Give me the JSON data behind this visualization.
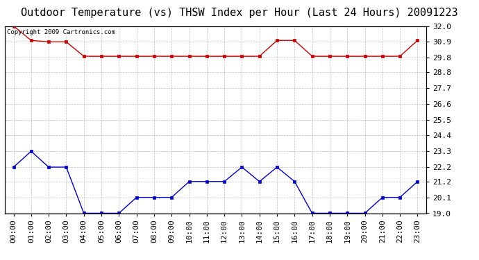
{
  "title": "Outdoor Temperature (vs) THSW Index per Hour (Last 24 Hours) 20091223",
  "copyright": "Copyright 2009 Cartronics.com",
  "x_labels": [
    "00:00",
    "01:00",
    "02:00",
    "03:00",
    "04:00",
    "05:00",
    "06:00",
    "07:00",
    "08:00",
    "09:00",
    "10:00",
    "11:00",
    "12:00",
    "13:00",
    "14:00",
    "15:00",
    "16:00",
    "17:00",
    "18:00",
    "19:00",
    "20:00",
    "21:00",
    "22:00",
    "23:00"
  ],
  "red_data": [
    32.0,
    31.0,
    30.9,
    30.9,
    29.9,
    29.9,
    29.9,
    29.9,
    29.9,
    29.9,
    29.9,
    29.9,
    29.9,
    29.9,
    29.9,
    31.0,
    31.0,
    29.9,
    29.9,
    29.9,
    29.9,
    29.9,
    29.9,
    31.0
  ],
  "blue_data": [
    22.2,
    23.3,
    22.2,
    22.2,
    19.0,
    19.0,
    19.0,
    20.1,
    20.1,
    20.1,
    21.2,
    21.2,
    21.2,
    22.2,
    21.2,
    22.2,
    21.2,
    19.0,
    19.0,
    19.0,
    19.0,
    20.1,
    20.1,
    21.2
  ],
  "red_color": "#cc0000",
  "blue_color": "#0000cc",
  "bg_color": "#ffffff",
  "grid_color": "#b0b0b0",
  "ylim": [
    19.0,
    32.0
  ],
  "yticks": [
    19.0,
    20.1,
    21.2,
    22.2,
    23.3,
    24.4,
    25.5,
    26.6,
    27.7,
    28.8,
    29.8,
    30.9,
    32.0
  ],
  "ytick_labels": [
    "19.0",
    "20.1",
    "21.2",
    "22.2",
    "23.3",
    "24.4",
    "25.5",
    "26.6",
    "27.7",
    "28.8",
    "29.8",
    "30.9",
    "32.0"
  ],
  "title_fontsize": 11,
  "tick_fontsize": 8,
  "copyright_fontsize": 6.5,
  "marker_size": 3,
  "line_width": 1.0
}
